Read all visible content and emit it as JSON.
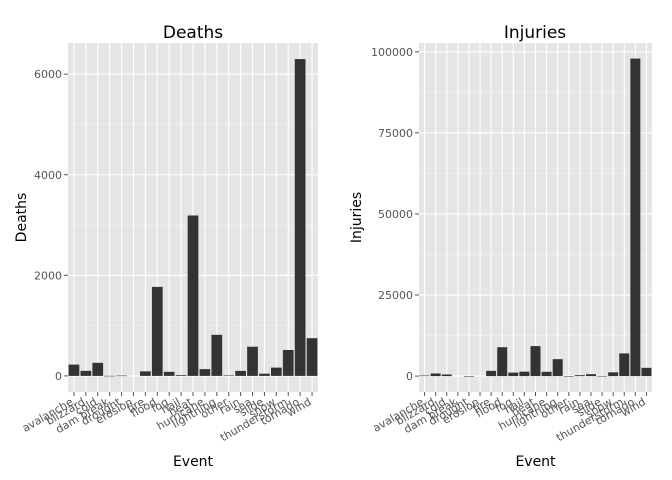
{
  "chart_data": [
    {
      "type": "bar",
      "title": "Deaths",
      "xlabel": "Event",
      "ylabel": "Deaths",
      "categories": [
        "avalanche",
        "blizzard",
        "cold",
        "dam break",
        "drought",
        "erosion",
        "fire",
        "flood",
        "fog",
        "hail",
        "heat",
        "hurricane",
        "lightning",
        "other",
        "rain",
        "sea",
        "slide",
        "snow",
        "thunderstorm",
        "tornado",
        "wind"
      ],
      "values": [
        225,
        101,
        260,
        2,
        6,
        0,
        90,
        1770,
        81,
        15,
        3190,
        135,
        817,
        8,
        100,
        580,
        44,
        165,
        515,
        6300,
        750
      ],
      "ylim": [
        -320,
        6620
      ],
      "yticks": [
        0,
        2000,
        4000,
        6000
      ],
      "ytick_labels": [
        "0",
        "2000",
        "4000",
        "6000"
      ],
      "grid": true
    },
    {
      "type": "bar",
      "title": "Injuries",
      "xlabel": "Event",
      "ylabel": "Injuries",
      "categories": [
        "avalanche",
        "blizzard",
        "cold",
        "dam break",
        "drought",
        "erosion",
        "fire",
        "flood",
        "fog",
        "hail",
        "heat",
        "hurricane",
        "lightning",
        "other",
        "rain",
        "sea",
        "slide",
        "snow",
        "thunderstorm",
        "tornado",
        "wind"
      ],
      "values": [
        170,
        805,
        500,
        0,
        19,
        0,
        1610,
        8910,
        1080,
        1370,
        9250,
        1330,
        5230,
        8,
        280,
        600,
        55,
        1170,
        6990,
        97900,
        2550
      ],
      "ylim": [
        -4900,
        102700
      ],
      "yticks": [
        0,
        25000,
        50000,
        75000,
        100000
      ],
      "ytick_labels": [
        "0",
        "25000",
        "50000",
        "75000",
        "100000"
      ],
      "grid": true
    }
  ]
}
